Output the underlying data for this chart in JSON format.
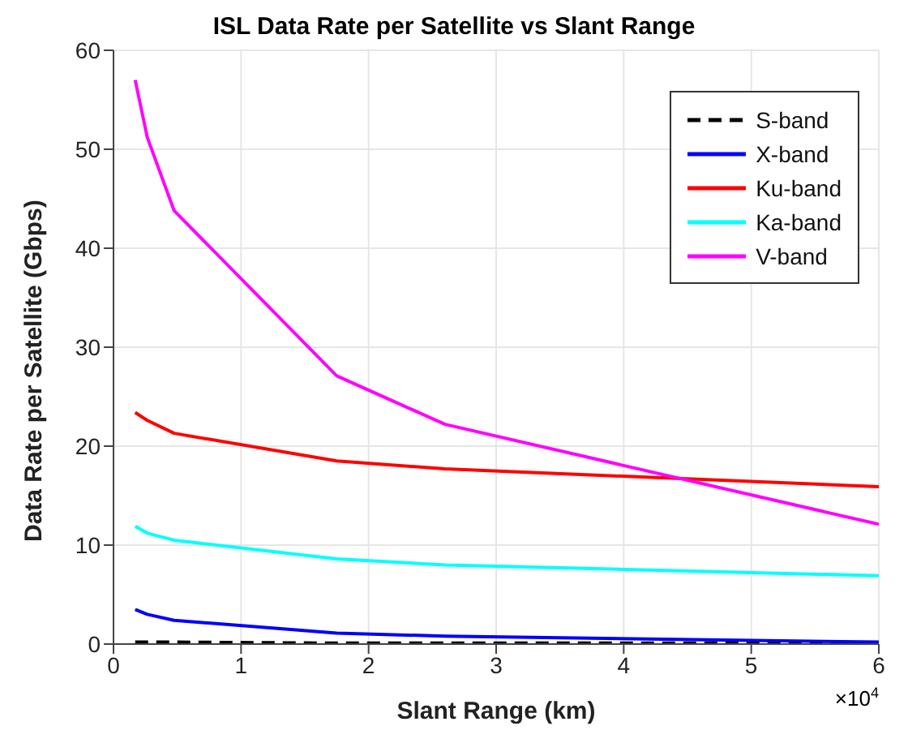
{
  "chart_data": {
    "type": "line",
    "title": "ISL Data Rate per Satellite vs Slant Range",
    "xlabel": "Slant Range (km)",
    "ylabel": "Data Rate per Satellite (Gbps)",
    "x": [
      0.17,
      0.265,
      0.475,
      1.75,
      2.6,
      6
    ],
    "series": [
      {
        "name": "S-band",
        "color": "#000000",
        "line_style": "dashed",
        "values": [
          0.2,
          0.2,
          0.2,
          0.1,
          0.1,
          0.1
        ]
      },
      {
        "name": "X-band",
        "color": "#0000ff",
        "values": [
          3.5,
          3.0,
          2.4,
          1.1,
          0.8,
          0.2
        ]
      },
      {
        "name": "Ku-band",
        "color": "#ff0000",
        "values": [
          23.4,
          22.6,
          21.3,
          18.5,
          17.7,
          15.9
        ]
      },
      {
        "name": "Ka-band",
        "color": "#00ffff",
        "values": [
          11.9,
          11.2,
          10.5,
          8.6,
          8.0,
          6.9
        ]
      },
      {
        "name": "V-band",
        "color": "#ff00ff",
        "values": [
          57,
          51.2,
          43.8,
          27.1,
          22.2,
          12.1
        ]
      }
    ],
    "xlim": [
      0,
      6
    ],
    "xticks": [
      0,
      1,
      2,
      3,
      4,
      5,
      6
    ],
    "ylim": [
      0,
      60
    ],
    "yticks": [
      0,
      10,
      20,
      30,
      40,
      50,
      60
    ],
    "annotations": [
      "×10$^{4}$"
    ],
    "grid": true,
    "legend": "top right",
    "marker": "none",
    "line_style": "solid"
  }
}
